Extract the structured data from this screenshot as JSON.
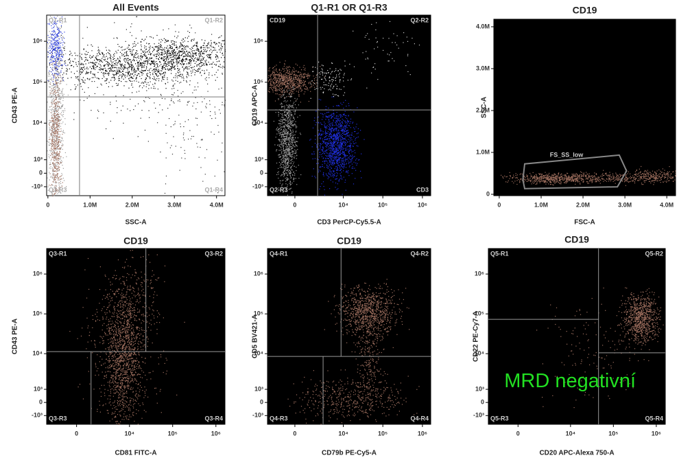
{
  "chart_data": [
    {
      "type": "scatter",
      "title": "All Events",
      "xlabel": "SSC-A",
      "ylabel": "CD43 PE-A",
      "xscale": "linear",
      "yscale": "biex",
      "xlim": [
        -30000,
        4200000
      ],
      "ylim": [
        -1950,
        4360000
      ],
      "xticks": [
        0,
        {
          "value": 1000000,
          "label": "1.0M"
        },
        {
          "value": 2000000,
          "label": "2.0M"
        },
        {
          "value": 3000000,
          "label": "3.0M"
        },
        {
          "value": 4000000,
          "label": "4.0M"
        }
      ],
      "yticks": [
        {
          "value": 1000000,
          "label": "10⁶"
        },
        {
          "value": 100000,
          "label": "10⁵"
        },
        {
          "value": 10000,
          "label": "10⁴"
        },
        {
          "value": 1000,
          "label": "10³"
        },
        0,
        {
          "value": -1000,
          "label": "-10³"
        }
      ],
      "background": "#ffffff",
      "quadrant": {
        "x_upper": 750000,
        "x_lower": 750000,
        "y_left": 43800,
        "y_right": 43800
      },
      "quadrant_labels": [
        "Q1-R1",
        "Q1-R2",
        "Q1-R3",
        "Q1-R4"
      ]
    },
    {
      "type": "scatter",
      "title": "Q1-R1 OR Q1-R3",
      "xlabel": "CD3 PerCP-Cy5.5-A",
      "ylabel": "CD19 APC-A",
      "xscale": "biex",
      "yscale": "biex",
      "xlim": [
        -2830,
        1620000
      ],
      "ylim": [
        -1950,
        4360000
      ],
      "xticks": [
        0,
        {
          "value": 10000,
          "label": "10⁴"
        },
        {
          "value": 100000,
          "label": "10⁵"
        },
        {
          "value": 1000000,
          "label": "10⁶"
        }
      ],
      "yticks": [
        {
          "value": 1000000,
          "label": "10⁶"
        },
        {
          "value": 100000,
          "label": "10⁵"
        },
        {
          "value": 10000,
          "label": "10⁴"
        },
        {
          "value": 1000,
          "label": "10³"
        },
        0,
        {
          "value": -1000,
          "label": "-10³"
        }
      ],
      "background": "#000000",
      "quadrant": {
        "x_upper": 2090,
        "x_lower": 2090,
        "y_left": 21100,
        "y_right": 21100
      },
      "quadrant_labels": [
        "CD19",
        "Q2-R2",
        "Q2-R3",
        "CD3"
      ]
    },
    {
      "type": "scatter",
      "title": "CD19",
      "xlabel": "FSC-A",
      "ylabel": "SSC-A",
      "xscale": "linear",
      "yscale": "linear",
      "xlim": [
        -130000,
        4210000
      ],
      "ylim": [
        -33000,
        4180000
      ],
      "xticks": [
        0,
        {
          "value": 1000000,
          "label": "1.0M"
        },
        {
          "value": 2000000,
          "label": "2.0M"
        },
        {
          "value": 3000000,
          "label": "3.0M"
        },
        {
          "value": 4000000,
          "label": "4.0M"
        }
      ],
      "yticks": [
        0,
        {
          "value": 1000000,
          "label": "1.0M"
        },
        {
          "value": 2000000,
          "label": "2.0M"
        },
        {
          "value": 3000000,
          "label": "3.0M"
        },
        {
          "value": 4000000,
          "label": "4.0M"
        }
      ],
      "background": "#000000",
      "gate_label": "FS_SS_low"
    },
    {
      "type": "scatter",
      "title": "CD19",
      "xlabel": "CD81 FITC-A",
      "ylabel": "CD43 PE-A",
      "xscale": "biex",
      "yscale": "biex",
      "xlim": [
        -2830,
        1620000
      ],
      "ylim": [
        -1950,
        4360000
      ],
      "xticks": [
        0,
        {
          "value": 10000,
          "label": "10⁴"
        },
        {
          "value": 100000,
          "label": "10⁵"
        },
        {
          "value": 1000000,
          "label": "10⁶"
        }
      ],
      "yticks": [
        {
          "value": 1000000,
          "label": "10⁶"
        },
        {
          "value": 100000,
          "label": "10⁵"
        },
        {
          "value": 10000,
          "label": "10⁴"
        },
        {
          "value": 1000,
          "label": "10³"
        },
        0,
        {
          "value": -1000,
          "label": "-10³"
        }
      ],
      "background": "#000000",
      "quadrant": {
        "x_upper": 24000,
        "x_lower": 1020,
        "y_left": 11300,
        "y_right": 11300
      },
      "quadrant_labels": [
        "Q3-R1",
        "Q3-R2",
        "Q3-R3",
        "Q3-R4"
      ]
    },
    {
      "type": "scatter",
      "title": "CD19",
      "xlabel": "CD79b PE-Cy5-A",
      "ylabel": "CD5 BV421-A",
      "xscale": "biex",
      "yscale": "biex",
      "xlim": [
        -2830,
        1620000
      ],
      "ylim": [
        -1950,
        4360000
      ],
      "xticks": [
        0,
        {
          "value": 10000,
          "label": "10⁴"
        },
        {
          "value": 100000,
          "label": "10⁵"
        },
        {
          "value": 1000000,
          "label": "10⁶"
        }
      ],
      "yticks": [
        {
          "value": 1000000,
          "label": "10⁶"
        },
        {
          "value": 100000,
          "label": "10⁵"
        },
        {
          "value": 10000,
          "label": "10⁴"
        },
        {
          "value": 1000,
          "label": "10³"
        },
        0,
        {
          "value": -1000,
          "label": "-10³"
        }
      ],
      "background": "#000000",
      "quadrant": {
        "x_upper": 8760,
        "x_lower": 2980,
        "y_left": 8520,
        "y_right": 8520
      },
      "quadrant_labels": [
        "Q4-R1",
        "Q4-R2",
        "Q4-R3",
        "Q4-R4"
      ]
    },
    {
      "type": "scatter",
      "title": "CD19",
      "xlabel": "CD20 APC-Alexa 750-A",
      "ylabel": "CD22 PE-Cy7-A",
      "xscale": "biex",
      "yscale": "biex",
      "xlim": [
        -2830,
        1620000
      ],
      "ylim": [
        -1950,
        4360000
      ],
      "xticks": [
        0,
        {
          "value": 10000,
          "label": "10⁴"
        },
        {
          "value": 100000,
          "label": "10⁵"
        },
        {
          "value": 1000000,
          "label": "10⁶"
        }
      ],
      "yticks": [
        {
          "value": 1000000,
          "label": "10⁶"
        },
        {
          "value": 100000,
          "label": "10⁵"
        },
        {
          "value": 10000,
          "label": "10⁴"
        },
        {
          "value": 1000,
          "label": "10³"
        },
        0,
        {
          "value": -1000,
          "label": "-10³"
        }
      ],
      "background": "#000000",
      "quadrant": {
        "x_upper": 45100,
        "x_lower": 45100,
        "y_left": 72800,
        "y_right": 10500
      },
      "quadrant_labels": [
        "Q5-R1",
        "Q5-R2",
        "Q5-R3",
        "Q5-R4"
      ],
      "annotation": "MRD negativní"
    }
  ]
}
